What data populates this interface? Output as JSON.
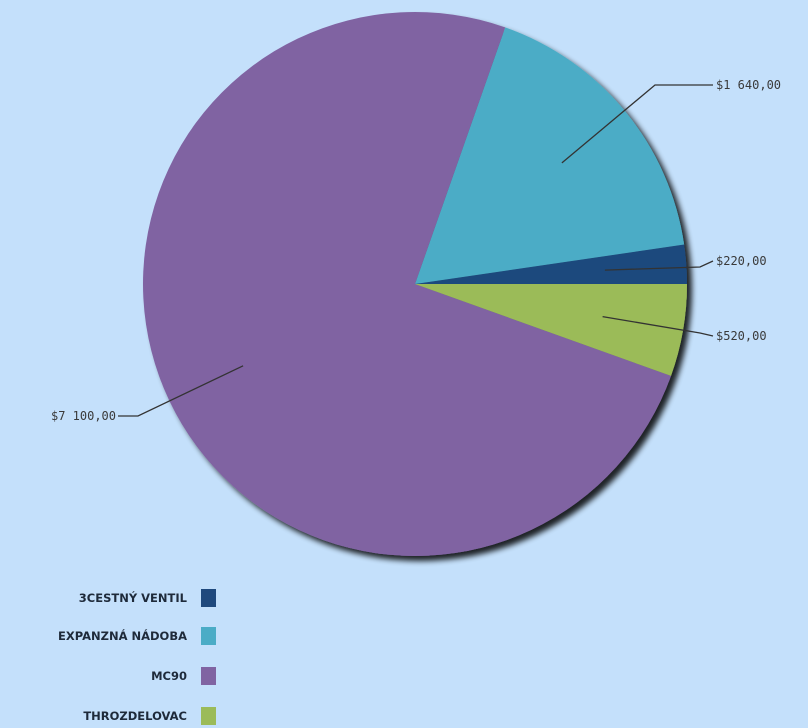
{
  "chart_data": {
    "type": "pie",
    "categories": [
      "3CESTNÝ VENTIL",
      "EXPANZNÁ NÁDOBA",
      "MC90",
      "THROZDELOVAC"
    ],
    "values": [
      220,
      1640,
      7100,
      520
    ],
    "data_labels": [
      "$220,00",
      "$1 640,00",
      "$7 100,00",
      "$520,00"
    ],
    "colors": [
      "#1f497d",
      "#4bacc6",
      "#8064a2",
      "#9bbb59"
    ],
    "legend_position": "bottom-left",
    "title": "",
    "start_angle_deg": 0,
    "direction": "counterclockwise"
  }
}
